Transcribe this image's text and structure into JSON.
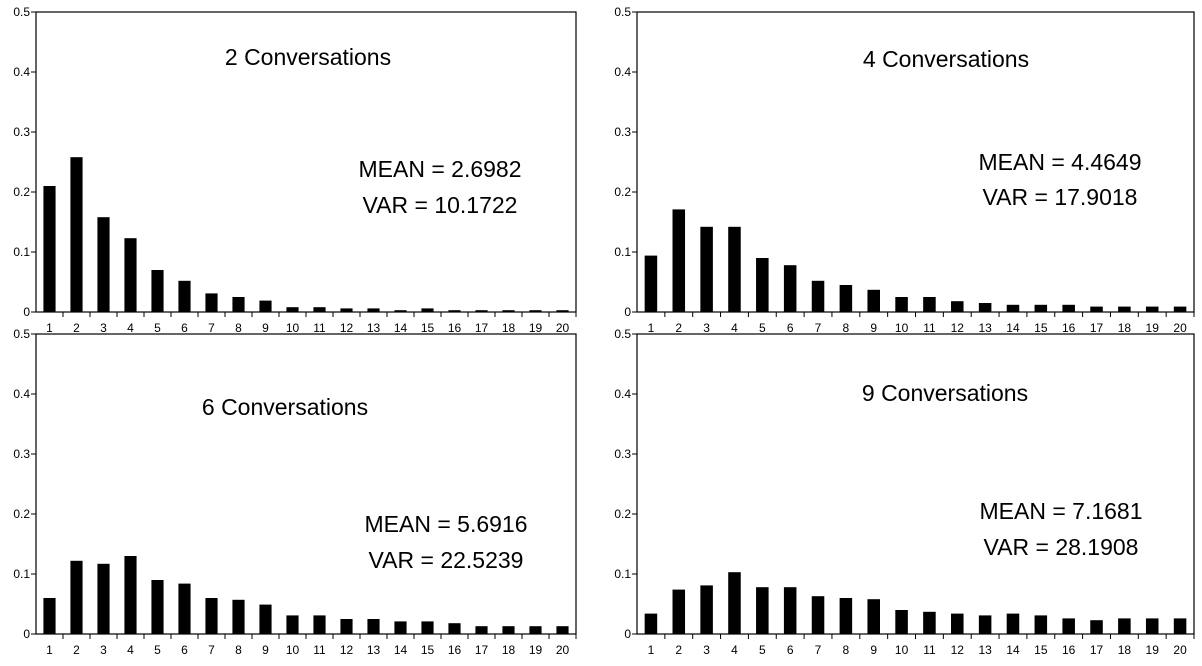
{
  "chart_data": [
    {
      "type": "bar",
      "title": "2 Conversations",
      "categories": [
        "1",
        "2",
        "3",
        "4",
        "5",
        "6",
        "7",
        "8",
        "9",
        "10",
        "11",
        "12",
        "13",
        "14",
        "15",
        "16",
        "17",
        "18",
        "19",
        "20"
      ],
      "values": [
        0.21,
        0.258,
        0.158,
        0.123,
        0.07,
        0.052,
        0.031,
        0.025,
        0.019,
        0.008,
        0.008,
        0.006,
        0.006,
        0.003,
        0.006,
        0.003,
        0.003,
        0.003,
        0.003,
        0.003
      ],
      "ylim": [
        0,
        0.5
      ],
      "yticks": [
        "0",
        "0.1",
        "0.2",
        "0.3",
        "0.4",
        "0.5"
      ],
      "annotations": [
        "MEAN = 2.6982",
        "VAR = 10.1722"
      ],
      "grid": false
    },
    {
      "type": "bar",
      "title": "4 Conversations",
      "categories": [
        "1",
        "2",
        "3",
        "4",
        "5",
        "6",
        "7",
        "8",
        "9",
        "10",
        "11",
        "12",
        "13",
        "14",
        "15",
        "16",
        "17",
        "18",
        "19",
        "20"
      ],
      "values": [
        0.094,
        0.171,
        0.142,
        0.142,
        0.09,
        0.078,
        0.052,
        0.045,
        0.037,
        0.025,
        0.025,
        0.018,
        0.015,
        0.012,
        0.012,
        0.012,
        0.009,
        0.009,
        0.009,
        0.009
      ],
      "ylim": [
        0,
        0.5
      ],
      "yticks": [
        "0",
        "0.1",
        "0.2",
        "0.3",
        "0.4",
        "0.5"
      ],
      "annotations": [
        "MEAN = 4.4649",
        "VAR = 17.9018"
      ],
      "grid": false
    },
    {
      "type": "bar",
      "title": "6 Conversations",
      "categories": [
        "1",
        "2",
        "3",
        "4",
        "5",
        "6",
        "7",
        "8",
        "9",
        "10",
        "11",
        "12",
        "13",
        "14",
        "15",
        "16",
        "17",
        "18",
        "19",
        "20"
      ],
      "values": [
        0.06,
        0.122,
        0.117,
        0.13,
        0.09,
        0.084,
        0.06,
        0.057,
        0.049,
        0.031,
        0.031,
        0.025,
        0.025,
        0.021,
        0.021,
        0.018,
        0.013,
        0.013,
        0.013,
        0.013
      ],
      "ylim": [
        0,
        0.5
      ],
      "yticks": [
        "0",
        "0.1",
        "0.2",
        "0.3",
        "0.4",
        "0.5"
      ],
      "annotations": [
        "MEAN = 5.6916",
        "VAR = 22.5239"
      ],
      "grid": false
    },
    {
      "type": "bar",
      "title": "9 Conversations",
      "categories": [
        "1",
        "2",
        "3",
        "4",
        "5",
        "6",
        "7",
        "8",
        "9",
        "10",
        "11",
        "12",
        "13",
        "14",
        "15",
        "16",
        "17",
        "18",
        "19",
        "20"
      ],
      "values": [
        0.034,
        0.074,
        0.081,
        0.103,
        0.078,
        0.078,
        0.063,
        0.06,
        0.058,
        0.04,
        0.037,
        0.034,
        0.031,
        0.034,
        0.031,
        0.026,
        0.023,
        0.026,
        0.026,
        0.026
      ],
      "ylim": [
        0,
        0.5
      ],
      "yticks": [
        "0",
        "0.1",
        "0.2",
        "0.3",
        "0.4",
        "0.5"
      ],
      "annotations": [
        "MEAN = 7.1681",
        "VAR = 28.1908"
      ],
      "grid": false
    }
  ]
}
